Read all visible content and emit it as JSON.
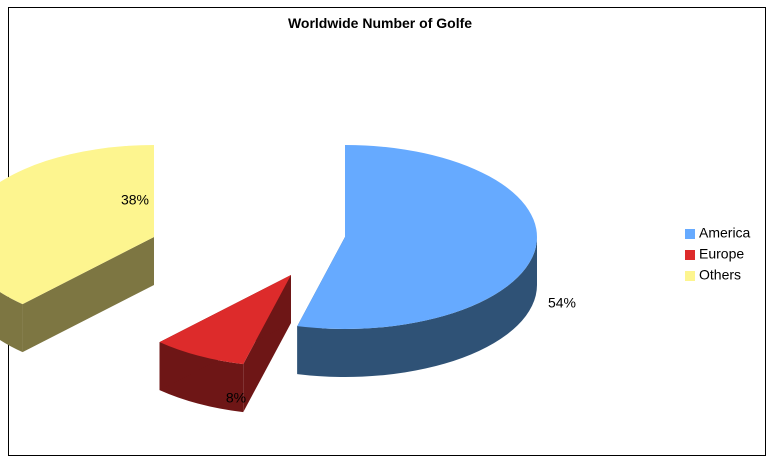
{
  "chart_data": {
    "type": "pie",
    "title": "Worldwide Number of Golfe",
    "style": "3d-exploded",
    "legend_position": "right",
    "slices": [
      {
        "name": "America",
        "value": 54,
        "label": "54%",
        "color": "#66aaff",
        "side_color": "#2f5276"
      },
      {
        "name": "Europe",
        "value": 8,
        "label": "8%",
        "color": "#dd2b2b",
        "side_color": "#6e1616"
      },
      {
        "name": "Others",
        "value": 38,
        "label": "38%",
        "color": "#fdf58f",
        "side_color": "#7d7642"
      }
    ]
  }
}
